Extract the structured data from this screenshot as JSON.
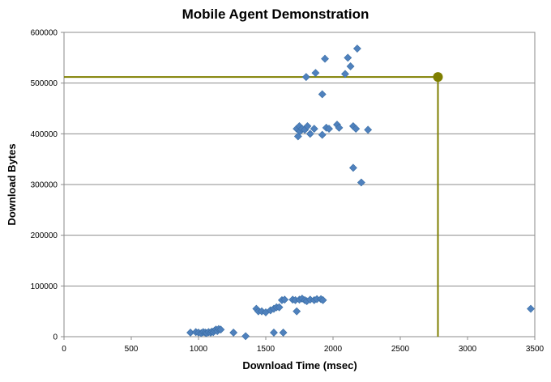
{
  "chart_data": {
    "type": "scatter",
    "title": "Mobile Agent Demonstration",
    "xlabel": "Download Time (msec)",
    "ylabel": "Download Bytes",
    "xlim": [
      0,
      3500
    ],
    "ylim": [
      0,
      600000
    ],
    "x_ticks": [
      "0",
      "500",
      "1000",
      "1500",
      "2000",
      "2500",
      "3000",
      "3500"
    ],
    "y_ticks": [
      "0",
      "100000",
      "200000",
      "300000",
      "400000",
      "500000",
      "600000"
    ],
    "grid": "horizontal",
    "legend": "none",
    "marker_color": "#4F81BD",
    "highlight_color": "#7F7F00",
    "highlight_point": {
      "x": 2780,
      "y": 512000
    },
    "points": [
      [
        940,
        8000
      ],
      [
        980,
        9000
      ],
      [
        1000,
        8000
      ],
      [
        1020,
        7000
      ],
      [
        1035,
        9000
      ],
      [
        1050,
        8000
      ],
      [
        1060,
        7000
      ],
      [
        1075,
        9000
      ],
      [
        1090,
        8000
      ],
      [
        1100,
        10000
      ],
      [
        1110,
        9000
      ],
      [
        1120,
        12000
      ],
      [
        1130,
        14000
      ],
      [
        1140,
        11000
      ],
      [
        1150,
        15000
      ],
      [
        1165,
        14000
      ],
      [
        1260,
        8000
      ],
      [
        1350,
        1000
      ],
      [
        1430,
        55000
      ],
      [
        1445,
        50000
      ],
      [
        1470,
        50000
      ],
      [
        1500,
        48000
      ],
      [
        1535,
        52000
      ],
      [
        1560,
        55000
      ],
      [
        1580,
        58000
      ],
      [
        1600,
        58000
      ],
      [
        1620,
        72000
      ],
      [
        1640,
        73000
      ],
      [
        1700,
        73000
      ],
      [
        1720,
        72000
      ],
      [
        1730,
        50000
      ],
      [
        1750,
        73000
      ],
      [
        1770,
        75000
      ],
      [
        1790,
        72000
      ],
      [
        1805,
        70000
      ],
      [
        1830,
        73000
      ],
      [
        1860,
        72000
      ],
      [
        1880,
        74000
      ],
      [
        1910,
        74000
      ],
      [
        1925,
        72000
      ],
      [
        1560,
        8000
      ],
      [
        1630,
        8000
      ],
      [
        1730,
        410000
      ],
      [
        1740,
        395000
      ],
      [
        1750,
        415000
      ],
      [
        1755,
        405000
      ],
      [
        1770,
        410000
      ],
      [
        1790,
        408000
      ],
      [
        1810,
        415000
      ],
      [
        1830,
        400000
      ],
      [
        1860,
        410000
      ],
      [
        1920,
        398000
      ],
      [
        1950,
        412000
      ],
      [
        1970,
        410000
      ],
      [
        2030,
        418000
      ],
      [
        2045,
        412000
      ],
      [
        2150,
        415000
      ],
      [
        2170,
        410000
      ],
      [
        2260,
        408000
      ],
      [
        1800,
        512000
      ],
      [
        1870,
        520000
      ],
      [
        1920,
        478000
      ],
      [
        1940,
        548000
      ],
      [
        2090,
        518000
      ],
      [
        2110,
        550000
      ],
      [
        2130,
        533000
      ],
      [
        2180,
        568000
      ],
      [
        2150,
        333000
      ],
      [
        2210,
        304000
      ],
      [
        3470,
        55000
      ]
    ]
  }
}
